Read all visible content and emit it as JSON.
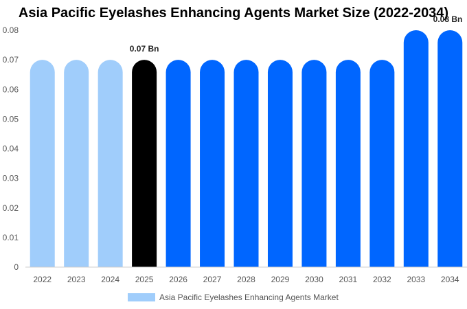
{
  "title": "Asia Pacific Eyelashes Enhancing Agents Market Size (2022-2034)",
  "colors": {
    "historical": "#a0cdfb",
    "base_year": "#000000",
    "forecast": "#0066ff",
    "legend": "#a0cdfb",
    "axis": "#cccccc",
    "tick_text": "#555555"
  },
  "legend": {
    "label": "Asia Pacific Eyelashes Enhancing Agents Market"
  },
  "chart_data": {
    "type": "bar",
    "title": "Asia Pacific Eyelashes Enhancing Agents Market Size (2022-2034)",
    "xlabel": "",
    "ylabel": "",
    "categories": [
      "2022",
      "2023",
      "2024",
      "2025",
      "2026",
      "2027",
      "2028",
      "2029",
      "2030",
      "2031",
      "2032",
      "2033",
      "2034"
    ],
    "series": [
      {
        "name": "Asia Pacific Eyelashes Enhancing Agents Market",
        "values": [
          0.07,
          0.07,
          0.07,
          0.07,
          0.07,
          0.07,
          0.07,
          0.07,
          0.07,
          0.07,
          0.07,
          0.08,
          0.08
        ]
      }
    ],
    "bar_colors": [
      "historical",
      "historical",
      "historical",
      "base_year",
      "forecast",
      "forecast",
      "forecast",
      "forecast",
      "forecast",
      "forecast",
      "forecast",
      "forecast",
      "forecast"
    ],
    "data_labels": [
      {
        "category": "2025",
        "text": "0.07 Bn"
      },
      {
        "category": "2034",
        "text": "0.08 Bn"
      }
    ],
    "yticks": [
      "0",
      "0.01",
      "0.02",
      "0.03",
      "0.04",
      "0.05",
      "0.06",
      "0.07",
      "0.08"
    ],
    "ylim": [
      0,
      0.08
    ],
    "grid": false,
    "legend_position": "bottom"
  }
}
